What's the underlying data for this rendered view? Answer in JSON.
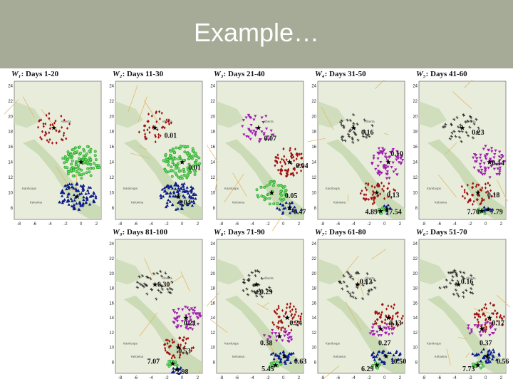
{
  "slide": {
    "title": "Example…"
  },
  "colors": {
    "header_bg": "#a6ab98",
    "map_land": "#e8ecda",
    "map_green": "#c7d9b0",
    "cluster_red": "#a01010",
    "cluster_green": "#22aa22",
    "cluster_blue": "#0a1a8a",
    "cluster_magenta": "#a020b0",
    "cluster_gray": "#222222"
  },
  "axis": {
    "x_ticks": [
      "-8",
      "-6",
      "-4",
      "-2",
      "0",
      "2"
    ],
    "y_ticks": [
      "24",
      "22",
      "20",
      "18",
      "16",
      "14",
      "12",
      "10",
      "8"
    ],
    "map_labels": [
      "Alberta",
      "Kamloops",
      "Kelowna"
    ]
  },
  "panels": [
    {
      "window": "W₁",
      "days": ": Days 1-20",
      "clusters": [
        {
          "type": "diamond",
          "color": "cluster_red",
          "cx": -3.5,
          "cy": 18.5,
          "rx": 2.2,
          "ry": 2.2,
          "n": 40
        },
        {
          "type": "circle",
          "color": "cluster_green",
          "cx": 0,
          "cy": 14,
          "rx": 2.5,
          "ry": 2.2,
          "n": 110
        },
        {
          "type": "triangle",
          "color": "cluster_blue",
          "cx": -0.5,
          "cy": 9.5,
          "rx": 2.5,
          "ry": 1.8,
          "n": 95
        }
      ],
      "labels": []
    },
    {
      "window": "W₂",
      "days": ": Days 11-30",
      "clusters": [
        {
          "type": "diamond",
          "color": "cluster_red",
          "cx": -3.5,
          "cy": 18.5,
          "rx": 2.2,
          "ry": 2.2,
          "n": 40
        },
        {
          "type": "circle",
          "color": "cluster_green",
          "cx": 0,
          "cy": 14,
          "rx": 2.5,
          "ry": 2.2,
          "n": 110
        },
        {
          "type": "triangle",
          "color": "cluster_blue",
          "cx": -0.5,
          "cy": 9.5,
          "rx": 2.5,
          "ry": 1.8,
          "n": 95
        }
      ],
      "labels": [
        {
          "text": "0.01",
          "x": -2.3,
          "y": 17.2
        },
        {
          "text": "0.01",
          "x": 0.8,
          "y": 13.0
        },
        {
          "text": "0.04",
          "x": -0.5,
          "y": 8.4
        }
      ]
    },
    {
      "window": "W₃",
      "days": ": Days 21-40",
      "clusters": [
        {
          "type": "inv",
          "color": "cluster_magenta",
          "cx": -3.2,
          "cy": 18.5,
          "rx": 2.4,
          "ry": 2.0,
          "n": 40
        },
        {
          "type": "diamond",
          "color": "cluster_red",
          "cx": 0.8,
          "cy": 14,
          "rx": 2.0,
          "ry": 2.0,
          "n": 70
        },
        {
          "type": "circle",
          "color": "cluster_green",
          "cx": -1.5,
          "cy": 10,
          "rx": 2.0,
          "ry": 1.6,
          "n": 45
        },
        {
          "type": "triangle",
          "color": "cluster_blue",
          "cx": 0.8,
          "cy": 8,
          "rx": 1.6,
          "ry": 0.9,
          "n": 25
        }
      ],
      "labels": [
        {
          "text": "0.07",
          "x": -2.5,
          "y": 16.8
        },
        {
          "text": "0.04",
          "x": 1.6,
          "y": 13.2
        },
        {
          "text": "0.05",
          "x": 0.2,
          "y": 9.3
        },
        {
          "text": "6.47",
          "x": 1.3,
          "y": 7.2
        }
      ]
    },
    {
      "window": "W₄",
      "days": ": Days 31-50",
      "clusters": [
        {
          "type": "star",
          "color": "cluster_gray",
          "cx": -4,
          "cy": 18.5,
          "rx": 2.5,
          "ry": 2.0,
          "n": 35
        },
        {
          "type": "inv",
          "color": "cluster_magenta",
          "cx": 0.5,
          "cy": 14,
          "rx": 2.2,
          "ry": 2.2,
          "n": 70
        },
        {
          "type": "diamond",
          "color": "cluster_red",
          "cx": -1,
          "cy": 10,
          "rx": 2.4,
          "ry": 1.6,
          "n": 50
        },
        {
          "type": "circle",
          "color": "cluster_green",
          "cx": -0.5,
          "cy": 7.6,
          "rx": 0.6,
          "ry": 0.5,
          "n": 8
        },
        {
          "type": "triangle",
          "color": "cluster_blue",
          "cx": 0.3,
          "cy": 7.8,
          "rx": 0.8,
          "ry": 0.6,
          "n": 8
        }
      ],
      "labels": [
        {
          "text": "0.16",
          "x": -3.0,
          "y": 17.6
        },
        {
          "text": "0.10",
          "x": 0.8,
          "y": 14.8
        },
        {
          "text": "0.13",
          "x": 0.3,
          "y": 9.4
        },
        {
          "text": "4.89",
          "x": -2.5,
          "y": 7.2
        },
        {
          "text": "7.54",
          "x": 0.6,
          "y": 7.2
        }
      ]
    },
    {
      "window": "W₅",
      "days": ": Days 41-60",
      "clusters": [
        {
          "type": "star",
          "color": "cluster_gray",
          "cx": -3,
          "cy": 18.5,
          "rx": 2.5,
          "ry": 2.0,
          "n": 35
        },
        {
          "type": "inv",
          "color": "cluster_magenta",
          "cx": 0.5,
          "cy": 14,
          "rx": 2.2,
          "ry": 2.2,
          "n": 70
        },
        {
          "type": "diamond",
          "color": "cluster_red",
          "cx": -1,
          "cy": 10,
          "rx": 2.4,
          "ry": 1.6,
          "n": 50
        },
        {
          "type": "circle",
          "color": "cluster_green",
          "cx": -0.5,
          "cy": 7.6,
          "rx": 0.6,
          "ry": 0.5,
          "n": 8
        },
        {
          "type": "triangle",
          "color": "cluster_blue",
          "cx": 0.3,
          "cy": 7.8,
          "rx": 0.8,
          "ry": 0.6,
          "n": 8
        }
      ],
      "labels": [
        {
          "text": "0.23",
          "x": -1.8,
          "y": 17.6
        },
        {
          "text": "0.14",
          "x": 0.8,
          "y": 13.6
        },
        {
          "text": "0.18",
          "x": 0.2,
          "y": 9.4
        },
        {
          "text": "7.70",
          "x": -2.4,
          "y": 7.2
        },
        {
          "text": "7.79",
          "x": 0.6,
          "y": 7.2
        }
      ]
    },
    {
      "window": "W₉",
      "days": ": Days 81-100",
      "clusters": [
        {
          "type": "star",
          "color": "cluster_gray",
          "cx": -3.5,
          "cy": 18.5,
          "rx": 2.5,
          "ry": 2.0,
          "n": 35
        },
        {
          "type": "inv",
          "color": "cluster_magenta",
          "cx": 0.5,
          "cy": 14,
          "rx": 2.0,
          "ry": 1.8,
          "n": 55
        },
        {
          "type": "diamond",
          "color": "cluster_red",
          "cx": -0.5,
          "cy": 10,
          "rx": 2.0,
          "ry": 1.6,
          "n": 45
        },
        {
          "type": "circle",
          "color": "cluster_green",
          "cx": -1.2,
          "cy": 7.8,
          "rx": 0.7,
          "ry": 0.5,
          "n": 10
        },
        {
          "type": "triangle",
          "color": "cluster_blue",
          "cx": -0.7,
          "cy": 7.0,
          "rx": 0.8,
          "ry": 0.6,
          "n": 10
        }
      ],
      "labels": [
        {
          "text": "0.30",
          "x": -3.2,
          "y": 18.2
        },
        {
          "text": "0.21",
          "x": 0.2,
          "y": 13.0
        },
        {
          "text": "0.53",
          "x": -0.5,
          "y": 9.2
        },
        {
          "text": "7.07",
          "x": -4.5,
          "y": 7.8
        },
        {
          "text": "2.98",
          "x": -0.8,
          "y": 6.4
        }
      ]
    },
    {
      "window": "W₈",
      "days": ": Days 71-90",
      "clusters": [
        {
          "type": "star",
          "color": "cluster_gray",
          "cx": -3.5,
          "cy": 18.5,
          "rx": 2.5,
          "ry": 2.0,
          "n": 35
        },
        {
          "type": "diamond",
          "color": "cluster_red",
          "cx": 0.5,
          "cy": 14,
          "rx": 2.0,
          "ry": 2.0,
          "n": 55
        },
        {
          "type": "inv",
          "color": "cluster_magenta",
          "cx": -0.5,
          "cy": 11.5,
          "rx": 2.0,
          "ry": 1.0,
          "n": 25
        },
        {
          "type": "triangle",
          "color": "cluster_blue",
          "cx": 0.2,
          "cy": 8.8,
          "rx": 2.0,
          "ry": 1.0,
          "n": 35
        },
        {
          "type": "circle",
          "color": "cluster_green",
          "cx": -1.0,
          "cy": 7.6,
          "rx": 0.8,
          "ry": 0.5,
          "n": 10
        }
      ],
      "labels": [
        {
          "text": "0.29",
          "x": -3.0,
          "y": 17.2
        },
        {
          "text": "0.24",
          "x": 0.8,
          "y": 13.0
        },
        {
          "text": "0.38",
          "x": -3.0,
          "y": 10.3
        },
        {
          "text": "0.63",
          "x": 1.4,
          "y": 7.8
        },
        {
          "text": "5.45",
          "x": -2.8,
          "y": 6.8
        }
      ]
    },
    {
      "window": "W₇",
      "days": ": Days 61-80",
      "clusters": [
        {
          "type": "star",
          "color": "cluster_gray",
          "cx": -3.5,
          "cy": 18.5,
          "rx": 2.5,
          "ry": 2.0,
          "n": 35
        },
        {
          "type": "diamond",
          "color": "cluster_red",
          "cx": 0.5,
          "cy": 14,
          "rx": 2.0,
          "ry": 2.0,
          "n": 55
        },
        {
          "type": "inv",
          "color": "cluster_magenta",
          "cx": -0.5,
          "cy": 12.5,
          "rx": 2.0,
          "ry": 1.0,
          "n": 25
        },
        {
          "type": "triangle",
          "color": "cluster_blue",
          "cx": 0.2,
          "cy": 8.8,
          "rx": 2.0,
          "ry": 1.0,
          "n": 35
        },
        {
          "type": "circle",
          "color": "cluster_green",
          "cx": -1.0,
          "cy": 7.6,
          "rx": 0.8,
          "ry": 0.5,
          "n": 10
        }
      ],
      "labels": [
        {
          "text": "0.12",
          "x": -3.2,
          "y": 18.6
        },
        {
          "text": "0.13",
          "x": 0.6,
          "y": 13.0
        },
        {
          "text": "0.27",
          "x": -0.8,
          "y": 10.3
        },
        {
          "text": "0.50",
          "x": 1.2,
          "y": 7.8
        },
        {
          "text": "6.29",
          "x": -3.0,
          "y": 6.8
        }
      ]
    },
    {
      "window": "W₆",
      "days": ": Days 51-70",
      "clusters": [
        {
          "type": "star",
          "color": "cluster_gray",
          "cx": -3.5,
          "cy": 18.5,
          "rx": 2.5,
          "ry": 2.0,
          "n": 35
        },
        {
          "type": "diamond",
          "color": "cluster_red",
          "cx": 0.5,
          "cy": 14,
          "rx": 2.0,
          "ry": 2.0,
          "n": 55
        },
        {
          "type": "inv",
          "color": "cluster_magenta",
          "cx": -0.5,
          "cy": 12.5,
          "rx": 2.0,
          "ry": 1.0,
          "n": 25
        },
        {
          "type": "triangle",
          "color": "cluster_blue",
          "cx": 0.2,
          "cy": 8.8,
          "rx": 2.0,
          "ry": 1.0,
          "n": 35
        },
        {
          "type": "circle",
          "color": "cluster_green",
          "cx": -1.0,
          "cy": 7.6,
          "rx": 0.8,
          "ry": 0.5,
          "n": 10
        }
      ],
      "labels": [
        {
          "text": "0.16",
          "x": -3.2,
          "y": 18.6
        },
        {
          "text": "0.17",
          "x": 0.8,
          "y": 13.0
        },
        {
          "text": "0.37",
          "x": -0.8,
          "y": 10.3
        },
        {
          "text": "0.56",
          "x": 1.4,
          "y": 7.8
        },
        {
          "text": "7.73",
          "x": -3.0,
          "y": 6.8
        }
      ]
    }
  ]
}
